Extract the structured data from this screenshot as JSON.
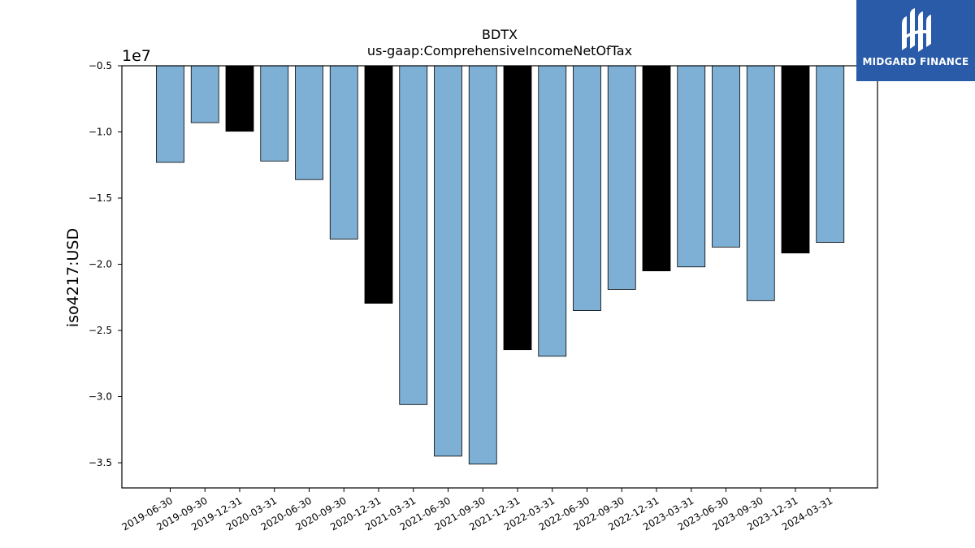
{
  "chart_data": {
    "type": "bar",
    "title": "BDTX",
    "subtitle": "us-gaap:ComprehensiveIncomeNetOfTax",
    "ylabel": "iso4217:USD",
    "xlabel": "",
    "offset_label": "1e7",
    "ylim": [
      -36900000,
      -5000000
    ],
    "yticks": [
      -5000000,
      -10000000,
      -15000000,
      -20000000,
      -25000000,
      -30000000,
      -35000000
    ],
    "ytick_labels": [
      "−0.5",
      "−1.0",
      "−1.5",
      "−2.0",
      "−2.5",
      "−3.0",
      "−3.5"
    ],
    "categories": [
      "2019-06-30",
      "2019-09-30",
      "2019-12-31",
      "2020-03-31",
      "2020-06-30",
      "2020-09-30",
      "2020-12-31",
      "2021-03-31",
      "2021-06-30",
      "2021-09-30",
      "2021-12-31",
      "2022-03-31",
      "2022-06-30",
      "2022-09-30",
      "2022-12-31",
      "2023-03-31",
      "2023-06-30",
      "2023-09-30",
      "2023-12-31",
      "2024-03-31"
    ],
    "values": [
      -12300000,
      -9300000,
      -9950000,
      -12200000,
      -13600000,
      -18100000,
      -22950000,
      -30600000,
      -34500000,
      -35100000,
      -26450000,
      -26950000,
      -23500000,
      -21900000,
      -20500000,
      -20200000,
      -18700000,
      -22750000,
      -19150000,
      -18350000
    ],
    "highlight": [
      false,
      false,
      true,
      false,
      false,
      false,
      true,
      false,
      false,
      false,
      true,
      false,
      false,
      false,
      true,
      false,
      false,
      false,
      true,
      false
    ],
    "colors": {
      "bar": "#7eb0d5",
      "highlight": "#000000",
      "edge": "#000000"
    },
    "grid": false,
    "legend": "none"
  },
  "logo": {
    "text": "MIDGARD FINANCE",
    "icon": "midgard-logo-icon"
  }
}
